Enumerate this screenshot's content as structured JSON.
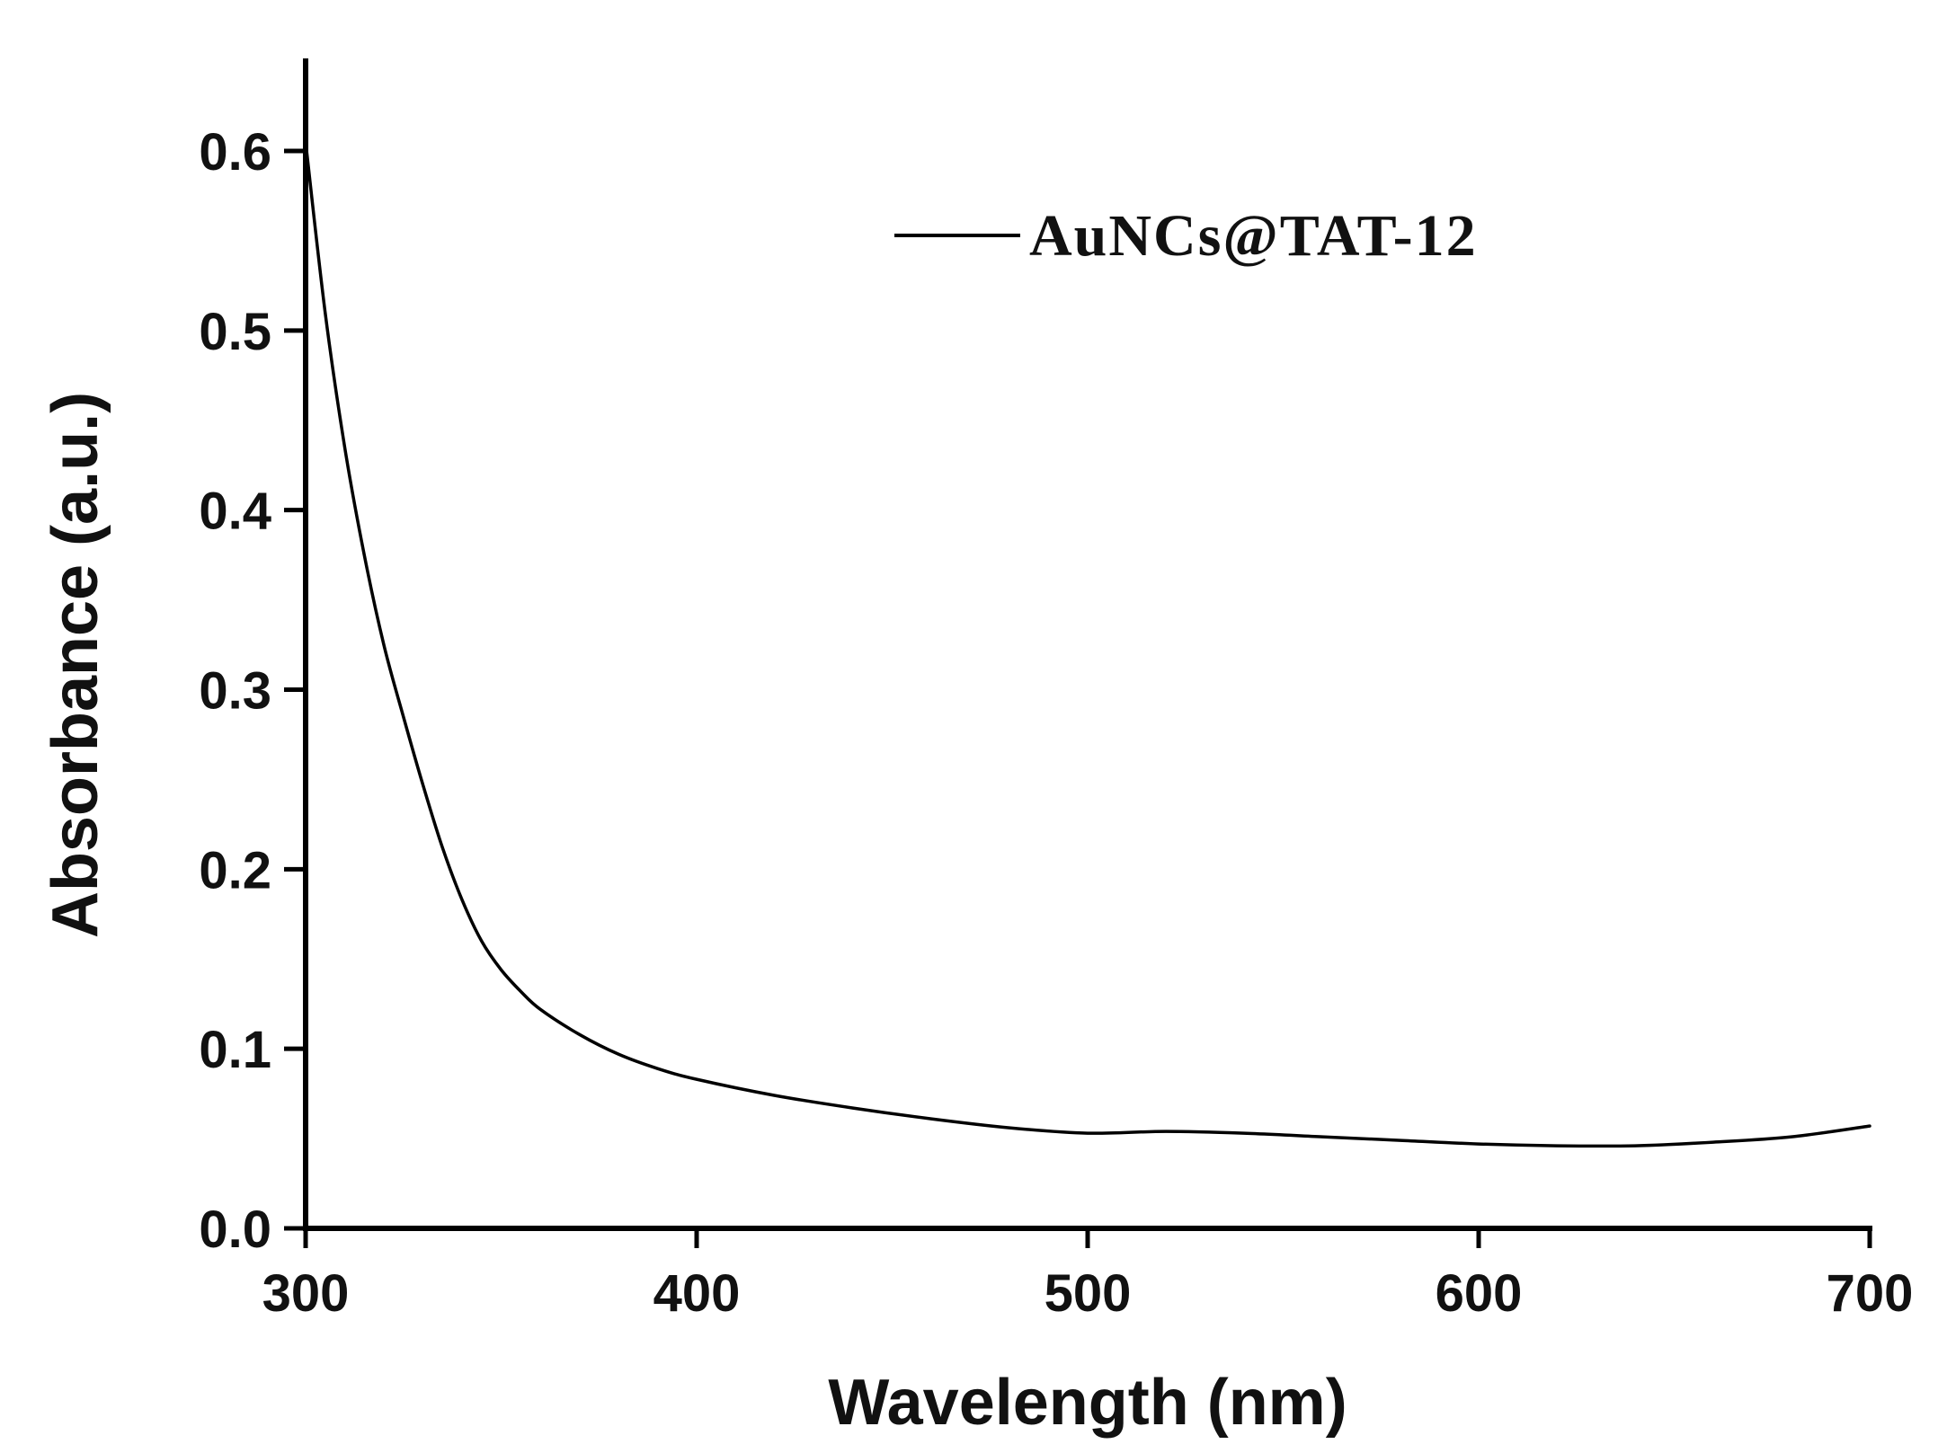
{
  "chart_data": {
    "type": "line",
    "title": "",
    "xlabel": "Wavelength (nm)",
    "ylabel": "Absorbance (a.u.)",
    "xlim": [
      300,
      700
    ],
    "ylim": [
      0.0,
      0.65
    ],
    "x_ticks": [
      "300",
      "400",
      "500",
      "600",
      "700"
    ],
    "y_ticks": [
      "0.0",
      "0.1",
      "0.2",
      "0.3",
      "0.4",
      "0.5",
      "0.6"
    ],
    "grid": false,
    "legend_position": "top-right",
    "series": [
      {
        "name": "AuNCs@TAT-12",
        "color": "#000000",
        "x": [
          300,
          305,
          310,
          315,
          320,
          325,
          330,
          335,
          340,
          345,
          350,
          355,
          360,
          370,
          380,
          390,
          400,
          420,
          440,
          460,
          480,
          500,
          520,
          540,
          560,
          580,
          600,
          620,
          640,
          660,
          680,
          700
        ],
        "y": [
          0.605,
          0.51,
          0.435,
          0.375,
          0.325,
          0.285,
          0.247,
          0.212,
          0.183,
          0.16,
          0.144,
          0.132,
          0.122,
          0.108,
          0.097,
          0.089,
          0.083,
          0.074,
          0.067,
          0.061,
          0.056,
          0.053,
          0.054,
          0.053,
          0.051,
          0.049,
          0.047,
          0.046,
          0.046,
          0.048,
          0.051,
          0.057
        ]
      }
    ]
  }
}
